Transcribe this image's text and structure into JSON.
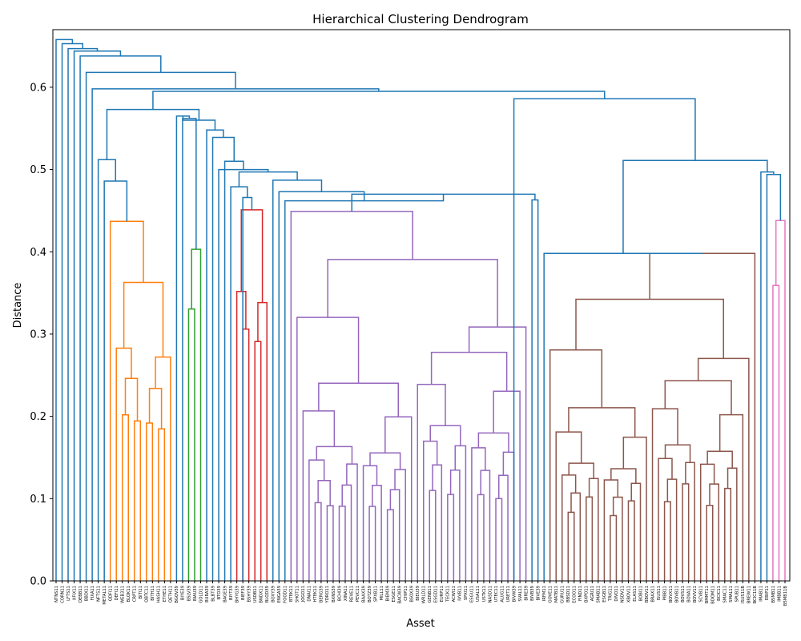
{
  "chart_data": {
    "type": "dendrogram",
    "title": "Hierarchical Clustering Dendrogram",
    "xlabel": "Asset",
    "ylabel": "Distance",
    "ylim": [
      0,
      0.67
    ],
    "yticks": [
      0.0,
      0.1,
      0.2,
      0.3,
      0.4,
      0.5,
      0.6
    ],
    "ytick_labels": [
      "0.0",
      "0.1",
      "0.2",
      "0.3",
      "0.4",
      "0.5",
      "0.6"
    ],
    "grid": false,
    "colors": {
      "default": "#1f77b4",
      "c1": "#ff7f0e",
      "c2": "#2ca02c",
      "c3": "#d62728",
      "c4": "#9467bd",
      "c5": "#8c564b",
      "c6": "#e377c2"
    },
    "leaves": [
      "NTNS11",
      "CORN11",
      "LFTS11",
      "XFIX11",
      "DEBB11",
      "BBDI11",
      "FIXA11",
      "NFTS11",
      "METAL11",
      "QDFI11",
      "DEFI11",
      "WEB311",
      "BLOK11",
      "CRPT11",
      "BITI11",
      "QBTC11",
      "BITH11",
      "HASH11",
      "ETHE11",
      "QETH11",
      "BGOV39",
      "BIYE39",
      "BSLV39",
      "BIAU39",
      "GOLD11",
      "BURA39",
      "BLBT39",
      "BTO39",
      "BAGE39",
      "BIYT39",
      "BHYG39",
      "BIEF39",
      "BSHY39",
      "USDB11",
      "BNDX11",
      "BLQD39",
      "BGVY39",
      "ENGA39",
      "FOOD11",
      "BTEK11",
      "SHOT11",
      "JOGO11",
      "DNAI11",
      "HTEK11",
      "BERG39",
      "YDRO11",
      "BXNS39",
      "BCHI39",
      "XINA11",
      "REVE11",
      "PEVC11",
      "BAAX39",
      "BOTZ39",
      "SPXB11",
      "MILL11",
      "BIEM39",
      "ESGE11",
      "BACW39",
      "CHIP11",
      "BSOX39",
      "BIEU39",
      "WRLD11",
      "GENB11",
      "ESGD11",
      "EURP11",
      "TECK11",
      "ACWI11",
      "IVVB11",
      "SPXI11",
      "ESGU11",
      "USAL11",
      "USTK11",
      "NASD11",
      "UTEC11",
      "ALUG11",
      "URET11",
      "BIVW39",
      "SVAL11",
      "BIRE39",
      "BIVB39",
      "BIVE39",
      "IRFM11",
      "GOVE11",
      "MATB11",
      "GURU11",
      "BBSD11",
      "ECOO11",
      "FIND11",
      "BXPO11",
      "AGRI11",
      "SMAB11",
      "ESGB11",
      "TRIG11",
      "DIVO11",
      "NSDV11",
      "XBOV11",
      "ELAS11",
      "BOBI11",
      "BBOV11",
      "BRAX11",
      "ISUS11",
      "PIBB11",
      "BOVX11",
      "BOVB11",
      "BOVS11",
      "BOVA11",
      "BOVV11",
      "SCVB11",
      "BMMT11",
      "BDOM11",
      "BCIC11",
      "SMAC11",
      "SMAL11",
      "SPUB11",
      "ISUS11B",
      "BREW11",
      "BCIC11B",
      "IMAB11",
      "EBIP11",
      "B5MB11",
      "IMBB11",
      "B5MB11B"
    ],
    "clusters": [
      {
        "color": "c1",
        "range": [
          "QDFI11",
          "QETH11"
        ],
        "top_distance": 0.437
      },
      {
        "color": "c2",
        "range": [
          "BSLV39",
          "GOLD11"
        ],
        "top_distance": 0.403
      },
      {
        "color": "c3",
        "range": [
          "BHYG39",
          "BLQD39"
        ],
        "top_distance": 0.451
      },
      {
        "color": "c4",
        "range": [
          "BTEK11",
          "BIRE39"
        ],
        "top_distance": 0.449
      },
      {
        "color": "c5",
        "range": [
          "GOVE11",
          "BCIC11B"
        ],
        "top_distance": 0.398
      },
      {
        "color": "c6",
        "range": [
          "B5MB11",
          "B5MB11B"
        ],
        "top_distance": 0.438
      }
    ],
    "root_distance": 0.658
  }
}
